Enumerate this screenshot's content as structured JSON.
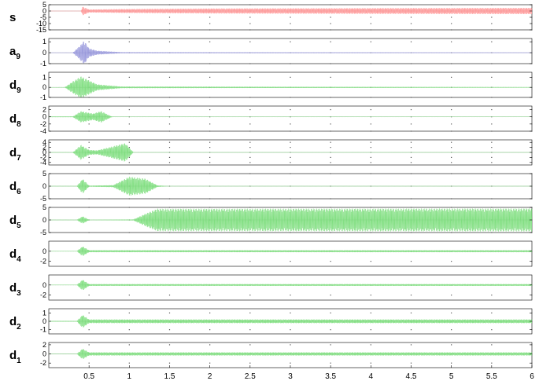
{
  "chart_data": {
    "type": "line",
    "colors": {
      "signal": "#ff9999",
      "approximation": "#9999dd",
      "detail": "#7fdf7f",
      "axis": "#000000",
      "zero_line": "#9a9a9a"
    },
    "xlim": [
      0,
      6
    ],
    "x_ticks": [
      "0.5",
      "1",
      "1.5",
      "2",
      "2.5",
      "3",
      "3.5",
      "4",
      "4.5",
      "5",
      "5.5",
      "6"
    ],
    "x_tick_values": [
      0.5,
      1,
      1.5,
      2,
      2.5,
      3,
      3.5,
      4,
      4.5,
      5,
      5.5,
      6
    ],
    "grid": "dotted",
    "panels": [
      {
        "label": "s",
        "sub": "",
        "ylim": [
          -15,
          5
        ],
        "ticks": [
          "5",
          "0",
          "-5",
          "-10",
          "-15"
        ],
        "tick_values": [
          5,
          0,
          -5,
          -10,
          -15
        ],
        "color_key": "signal",
        "envelope": [
          [
            0.4,
            0
          ],
          [
            0.42,
            3.5
          ],
          [
            0.5,
            1.2
          ],
          [
            1.0,
            1.6
          ],
          [
            2.0,
            2.0
          ],
          [
            4.0,
            2.3
          ],
          [
            6.0,
            2.5
          ]
        ]
      },
      {
        "label": "a",
        "sub": "9",
        "ylim": [
          -1,
          1.3
        ],
        "ticks": [
          "1",
          "0",
          "-1"
        ],
        "tick_values": [
          1,
          0,
          -1
        ],
        "color_key": "approximation",
        "envelope": [
          [
            0.3,
            0.02
          ],
          [
            0.38,
            0.6
          ],
          [
            0.44,
            1.1
          ],
          [
            0.5,
            0.4
          ],
          [
            0.6,
            0.18
          ],
          [
            0.9,
            0.05
          ],
          [
            6.0,
            0.03
          ]
        ]
      },
      {
        "label": "d",
        "sub": "9",
        "ylim": [
          -1,
          1.5
        ],
        "ticks": [
          "1",
          "0",
          "-1"
        ],
        "tick_values": [
          1,
          0,
          -1
        ],
        "color_key": "detail",
        "envelope": [
          [
            0.2,
            0.02
          ],
          [
            0.3,
            0.6
          ],
          [
            0.4,
            1.1
          ],
          [
            0.5,
            0.7
          ],
          [
            0.6,
            0.3
          ],
          [
            0.9,
            0.08
          ],
          [
            6.0,
            0.03
          ]
        ]
      },
      {
        "label": "d",
        "sub": "8",
        "ylim": [
          -4,
          3
        ],
        "ticks": [
          "2",
          "0",
          "-2",
          "-4"
        ],
        "tick_values": [
          2,
          0,
          -2,
          -4
        ],
        "color_key": "detail",
        "envelope": [
          [
            0.3,
            0.1
          ],
          [
            0.4,
            1.6
          ],
          [
            0.55,
            0.9
          ],
          [
            0.65,
            1.6
          ],
          [
            0.78,
            0.1
          ],
          [
            0.85,
            0.03
          ],
          [
            6.0,
            0.02
          ]
        ]
      },
      {
        "label": "d",
        "sub": "7",
        "ylim": [
          -5,
          5
        ],
        "ticks": [
          "4",
          "2",
          "0",
          "-2",
          "-4"
        ],
        "tick_values": [
          4,
          2,
          0,
          -2,
          -4
        ],
        "color_key": "detail",
        "envelope": [
          [
            0.3,
            0.1
          ],
          [
            0.4,
            3.0
          ],
          [
            0.5,
            1.0
          ],
          [
            0.6,
            0.8
          ],
          [
            0.95,
            3.7
          ],
          [
            1.05,
            0.1
          ],
          [
            1.2,
            0.02
          ],
          [
            6.0,
            0.02
          ]
        ]
      },
      {
        "label": "d",
        "sub": "6",
        "ylim": [
          -5,
          5
        ],
        "ticks": [
          "5",
          "0",
          "-5"
        ],
        "tick_values": [
          5,
          0,
          -5
        ],
        "color_key": "detail",
        "envelope": [
          [
            0.35,
            0.1
          ],
          [
            0.42,
            3.0
          ],
          [
            0.5,
            0.2
          ],
          [
            0.8,
            0.4
          ],
          [
            1.0,
            3.8
          ],
          [
            1.2,
            3.0
          ],
          [
            1.35,
            0.3
          ],
          [
            1.5,
            0.05
          ],
          [
            6.0,
            0.04
          ]
        ]
      },
      {
        "label": "d",
        "sub": "5",
        "ylim": [
          -5,
          5
        ],
        "ticks": [
          "5",
          "0",
          "-5"
        ],
        "tick_values": [
          5,
          0,
          -5
        ],
        "color_key": "detail",
        "envelope": [
          [
            0.35,
            0.1
          ],
          [
            0.42,
            1.5
          ],
          [
            0.5,
            0.1
          ],
          [
            1.05,
            0.2
          ],
          [
            1.2,
            2.5
          ],
          [
            1.35,
            4.5
          ],
          [
            2.0,
            4.5
          ],
          [
            6.0,
            4.6
          ]
        ]
      },
      {
        "label": "d",
        "sub": "4",
        "ylim": [
          -3,
          2
        ],
        "ticks": [
          "0",
          "-2"
        ],
        "tick_values": [
          0,
          -2
        ],
        "color_key": "detail",
        "envelope": [
          [
            0.35,
            0.05
          ],
          [
            0.42,
            1.0
          ],
          [
            0.5,
            0.2
          ],
          [
            6.0,
            0.2
          ]
        ]
      },
      {
        "label": "d",
        "sub": "3",
        "ylim": [
          -3,
          2
        ],
        "ticks": [
          "0",
          "-2"
        ],
        "tick_values": [
          0,
          -2
        ],
        "color_key": "detail",
        "envelope": [
          [
            0.35,
            0.05
          ],
          [
            0.42,
            1.1
          ],
          [
            0.5,
            0.18
          ],
          [
            6.0,
            0.18
          ]
        ]
      },
      {
        "label": "d",
        "sub": "2",
        "ylim": [
          -1.5,
          1.5
        ],
        "ticks": [
          "1",
          "0",
          "-1"
        ],
        "tick_values": [
          1,
          0,
          -1
        ],
        "color_key": "detail",
        "envelope": [
          [
            0.35,
            0.05
          ],
          [
            0.42,
            0.8
          ],
          [
            0.5,
            0.22
          ],
          [
            6.0,
            0.22
          ]
        ]
      },
      {
        "label": "d",
        "sub": "1",
        "ylim": [
          -3,
          2.5
        ],
        "ticks": [
          "2",
          "0",
          "-2"
        ],
        "tick_values": [
          2,
          0,
          -2
        ],
        "color_key": "detail",
        "envelope": [
          [
            0.35,
            0.05
          ],
          [
            0.42,
            1.2
          ],
          [
            0.5,
            0.35
          ],
          [
            6.0,
            0.35
          ]
        ]
      }
    ]
  }
}
